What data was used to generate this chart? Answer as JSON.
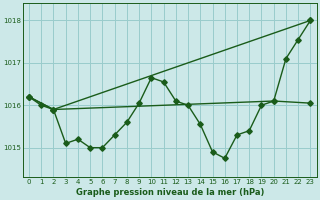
{
  "title": "Graphe pression niveau de la mer (hPa)",
  "bg_color": "#cce8e8",
  "grid_color": "#99cccc",
  "line_color": "#1a5c1a",
  "x_ticks": [
    0,
    1,
    2,
    3,
    4,
    5,
    6,
    7,
    8,
    9,
    10,
    11,
    12,
    13,
    14,
    15,
    16,
    17,
    18,
    19,
    20,
    21,
    22,
    23
  ],
  "y_ticks": [
    1015,
    1016,
    1017,
    1018
  ],
  "ylim": [
    1014.3,
    1018.4
  ],
  "xlim": [
    -0.5,
    23.5
  ],
  "series1_x": [
    0,
    1,
    2,
    3,
    4,
    5,
    6,
    7,
    8,
    9,
    10,
    11,
    12,
    13,
    14,
    15,
    16,
    17,
    18,
    19,
    20,
    21,
    22,
    23
  ],
  "series1_y": [
    1016.2,
    1016.0,
    1015.9,
    1015.1,
    1015.2,
    1015.0,
    1015.0,
    1015.3,
    1015.6,
    1016.05,
    1016.65,
    1016.55,
    1016.1,
    1016.0,
    1015.55,
    1014.9,
    1014.75,
    1015.3,
    1015.4,
    1016.0,
    1016.1,
    1017.1,
    1017.55,
    1018.0
  ],
  "series2_x": [
    0,
    2,
    23
  ],
  "series2_y": [
    1016.2,
    1015.9,
    1018.0
  ],
  "series3_x": [
    0,
    2,
    20,
    23
  ],
  "series3_y": [
    1016.2,
    1015.9,
    1016.1,
    1016.05
  ],
  "marker_size": 2.8,
  "linewidth": 1.0,
  "tick_fontsize": 5.0,
  "label_fontsize": 6.0
}
